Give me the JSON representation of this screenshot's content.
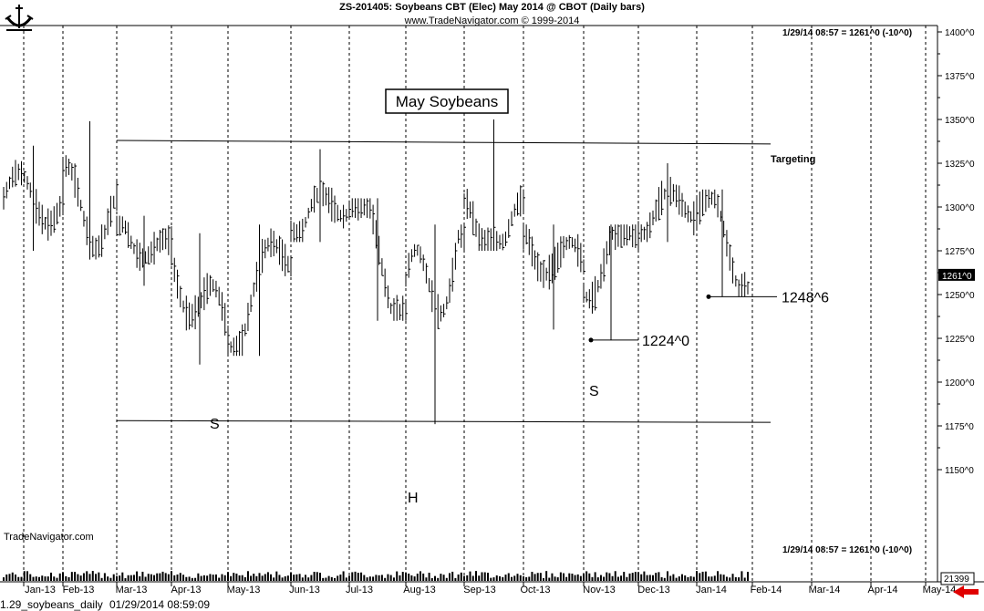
{
  "header": {
    "symbol_line": "ZS-201405:  Soybeans CBT (Elec) May 2014 @ CBOT  (Daily bars)",
    "copyright": "www.TradeNavigator.com © 1999-2014"
  },
  "quote_top": "1/29/14 08:57 = 1261^0 (-10^0)",
  "quote_bottom": "1/29/14 08:57 = 1261^0 (-10^0)",
  "watermark": "TradeNavigator.com",
  "footer": {
    "file": "1.29_soybeans_daily",
    "timestamp": "01/29/2014 08:59:09"
  },
  "chart_data": {
    "type": "bar",
    "title": "May Soybeans",
    "last_price_label": "1261^0",
    "volume_label": "21399",
    "y_ticks": [
      "1400^0",
      "1375^0",
      "1350^0",
      "1325^0",
      "1300^0",
      "1275^0",
      "1250^0",
      "1225^0",
      "1200^0",
      "1175^0",
      "1150^0"
    ],
    "ylim": [
      1125,
      1405
    ],
    "x_ticks": [
      "Jan-13",
      "Feb-13",
      "Mar-13",
      "Apr-13",
      "May-13",
      "Jun-13",
      "Jul-13",
      "Aug-13",
      "Sep-13",
      "Oct-13",
      "Nov-13",
      "Dec-13",
      "Jan-14",
      "Feb-14",
      "Mar-14",
      "Apr-14",
      "May-14"
    ],
    "ohlc_monthly_approx": [
      {
        "month": "Jan-13",
        "high": 1335,
        "low": 1275,
        "close": 1305
      },
      {
        "month": "Feb-13",
        "high": 1349,
        "low": 1270,
        "close": 1290
      },
      {
        "month": "Mar-13",
        "high": 1295,
        "low": 1255,
        "close": 1270
      },
      {
        "month": "Apr-13",
        "high": 1285,
        "low": 1210,
        "close": 1225
      },
      {
        "month": "May-13",
        "high": 1290,
        "low": 1215,
        "close": 1280
      },
      {
        "month": "Jun-13",
        "high": 1333,
        "low": 1280,
        "close": 1310
      },
      {
        "month": "Jul-13",
        "high": 1305,
        "low": 1235,
        "close": 1240
      },
      {
        "month": "Aug-13",
        "high": 1290,
        "low": 1176,
        "close": 1285
      },
      {
        "month": "Sep-13",
        "high": 1350,
        "low": 1275,
        "close": 1285
      },
      {
        "month": "Oct-13",
        "high": 1290,
        "low": 1230,
        "close": 1260
      },
      {
        "month": "Nov-13",
        "high": 1290,
        "low": 1224,
        "close": 1290
      },
      {
        "month": "Dec-13",
        "high": 1325,
        "low": 1280,
        "close": 1305
      },
      {
        "month": "Jan-14",
        "high": 1310,
        "low": 1248.75,
        "close": 1261
      }
    ],
    "annotations": {
      "targeting": "Targeting",
      "low_1": "1224^0",
      "low_2": "1248^6",
      "left_shoulder": "S",
      "head": "H",
      "right_shoulder": "S"
    },
    "trendlines": [
      {
        "from": {
          "date": "Mar-13",
          "price": 1338
        },
        "to": {
          "date": "Feb-14",
          "price": 1336
        }
      },
      {
        "from": {
          "date": "Mar-13",
          "price": 1178
        },
        "to": {
          "date": "Feb-14",
          "price": 1177
        }
      }
    ],
    "grid": "vertical dashed month lines",
    "colors": {
      "bars": "#000000",
      "last_price_box": "#000000",
      "arrow": "#e00000"
    }
  }
}
